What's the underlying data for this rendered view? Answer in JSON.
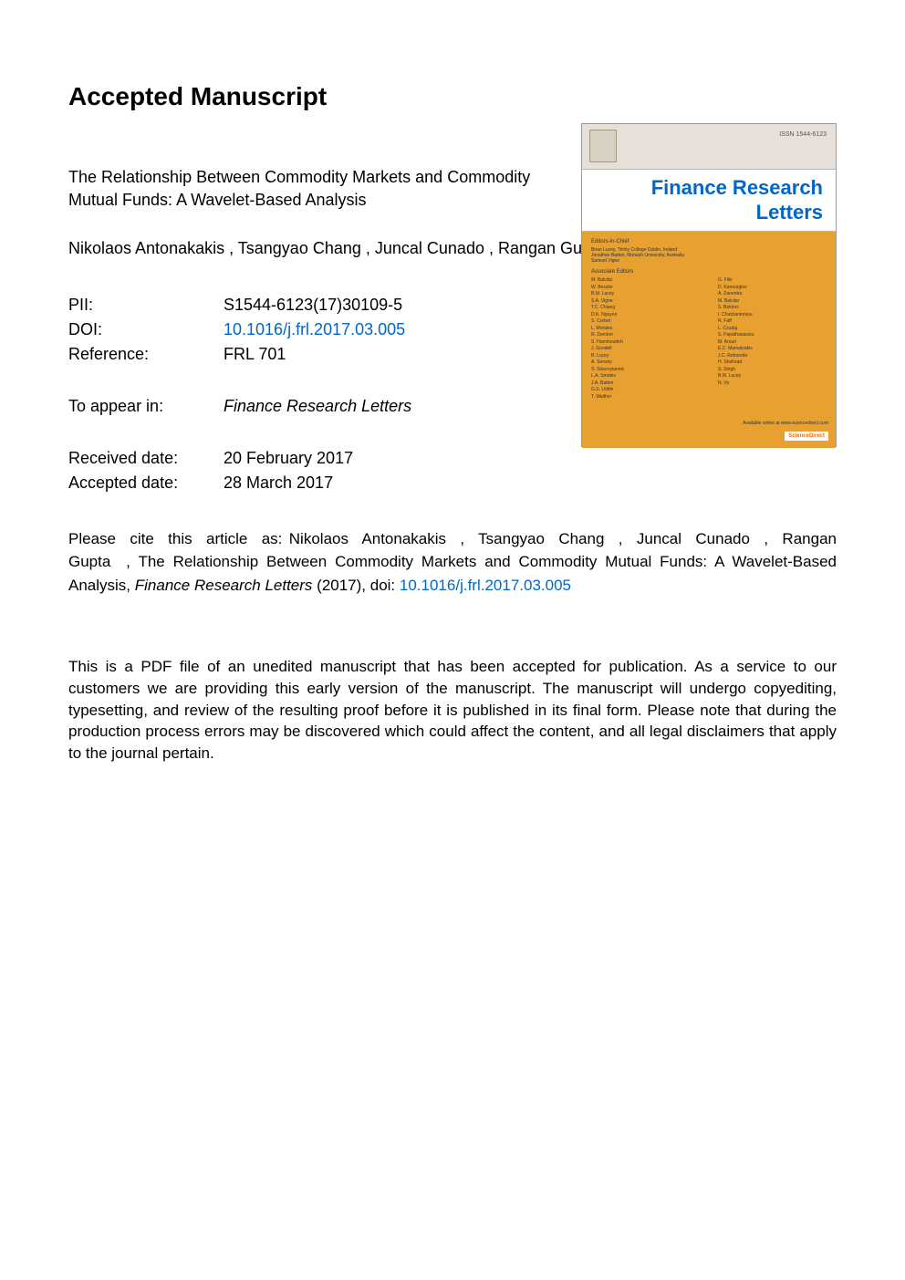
{
  "heading": "Accepted Manuscript",
  "article": {
    "title": "The Relationship Between Commodity Markets and Commodity Mutual Funds: A Wavelet-Based Analysis",
    "authors": "Nikolaos Antonakakis ,  Tsangyao Chang ,  Juncal Cunado ,  Rangan Gupta"
  },
  "metadata": {
    "pii_label": "PII:",
    "pii_value": "S1544-6123(17)30109-5",
    "doi_label": "DOI:",
    "doi_value": "10.1016/j.frl.2017.03.005",
    "reference_label": "Reference:",
    "reference_value": "FRL 701",
    "appear_label": "To appear in:",
    "appear_value": "Finance Research Letters",
    "received_label": "Received date:",
    "received_value": "20 February 2017",
    "accepted_label": "Accepted date:",
    "accepted_value": "28 March 2017"
  },
  "citation": {
    "prefix": "Please cite this article as:",
    "authors": "Nikolaos Antonakakis ,  Tsangyao Chang ,  Juncal Cunado ,  Rangan Gupta ,",
    "title": "The Relationship Between Commodity Markets and Commodity Mutual Funds: A Wavelet-Based Analysis,",
    "journal": "Finance Research Letters",
    "year_doi": "(2017), doi:",
    "doi_link": "10.1016/j.frl.2017.03.005"
  },
  "disclaimer": "This is a PDF file of an unedited manuscript that has been accepted for publication. As a service to our customers we are providing this early version of the manuscript. The manuscript will undergo copyediting, typesetting, and review of the resulting proof before it is published in its final form. Please note that during the production process errors may be discovered which could affect the content, and all legal disclaimers that apply to the journal pertain.",
  "cover": {
    "issn": "ISSN 1544-6123",
    "journal_name_line1": "Finance Research",
    "journal_name_line2": "Letters",
    "editors_heading": "Editors-in-Chief",
    "editors_desc_line1": "Brian Lucey, Trinity College Dublin, Ireland",
    "editors_desc_line2": "Jonathan Batten, Monash University, Australia",
    "editors_desc_line3": "Samuel Vigne",
    "editors_section": "Associate Editors",
    "editors_left": [
      "M. Balcilar",
      "W. Bessler",
      "B.M. Lucey",
      "S.A. Vigne",
      "T.C. Chiang",
      "D.K. Nguyen",
      "S. Corbet",
      "L. Morales",
      "R. Demirer",
      "S. Hammoudeh",
      "J. Goodell",
      "B. Lucey",
      "A. Sensoy",
      "S. Stavroyiannis",
      "L.A. Smales",
      "J.A. Batten",
      "G.S. Uddin",
      "T. Walther"
    ],
    "editors_right": [
      "G. Filis",
      "D. Kenourgios",
      "A. Zaremba",
      "M. Balcilar",
      "S. Bekiros",
      "I. Chatziantoniou",
      "R. Faff",
      "L. Czudaj",
      "S. Papathanasiou",
      "M. Arouri",
      "E.C. Mamatzakis",
      "J.C. Reboredo",
      "H. Shahzad",
      "S. Singh",
      "B.M. Lucey",
      "N. Vo"
    ],
    "available_text": "Available online at www.sciencedirect.com",
    "sciencedirect": "ScienceDirect"
  },
  "colors": {
    "background": "#ffffff",
    "text": "#000000",
    "link": "#0066cc",
    "cover_orange": "#e8a030",
    "cover_cream": "#e8e0d8"
  }
}
